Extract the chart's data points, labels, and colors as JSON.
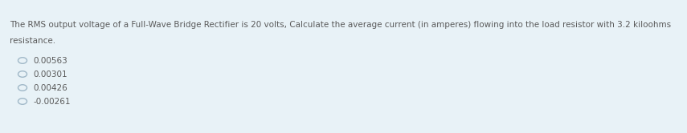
{
  "background_color": "#e8f2f7",
  "top_strip_color": "#ffffff",
  "question_text_line1": "The RMS output voltage of a Full-Wave Bridge Rectifier is 20 volts, Calculate the average current (in amperes) flowing into the load resistor with 3.2 kiloohms",
  "question_text_line2": "resistance.",
  "options": [
    "0.00563",
    "0.00301",
    "0.00426",
    "-0.00261"
  ],
  "text_color": "#5a5a5a",
  "circle_edge_color": "#a0b8c8",
  "font_size_question": 7.5,
  "font_size_options": 7.5,
  "fig_width": 8.55,
  "fig_height": 1.66,
  "dpi": 100
}
